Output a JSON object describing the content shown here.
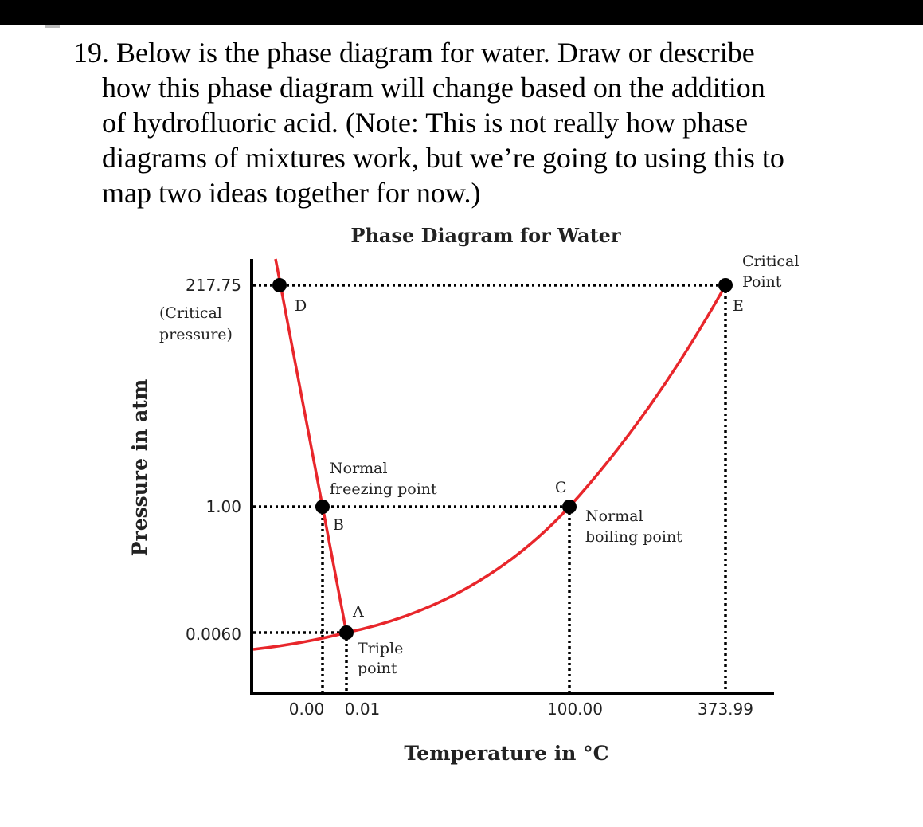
{
  "question": {
    "lines": [
      "19. Below is the phase diagram for water. Draw or describe",
      "how this phase diagram will change based on the addition",
      "of hydrofluoric acid. (Note: This is not really how phase",
      "diagrams of mixtures work, but we’re going to using this to",
      "map two ideas together for now.)"
    ]
  },
  "diagram": {
    "title": "Phase Diagram for Water",
    "x_label": "Temperature in °C",
    "y_label": "Pressure in atm",
    "x_ticks": [
      "0.00",
      "0.01",
      "100.00",
      "373.99"
    ],
    "y_ticks": [
      "217.75",
      "1.00",
      "0.0060"
    ],
    "y_tick_note": [
      "(Critical",
      "pressure)"
    ],
    "points": {
      "A": {
        "letter": "A",
        "label": [
          "Triple",
          "point"
        ],
        "temperature": 0.01,
        "pressure": 0.006
      },
      "B": {
        "letter": "B",
        "label": [
          "Normal",
          "freezing point"
        ],
        "temperature": 0.0,
        "pressure": 1.0
      },
      "C": {
        "letter": "C",
        "label": [
          "Normal",
          "boiling point"
        ],
        "temperature": 100.0,
        "pressure": 1.0
      },
      "D": {
        "letter": "D",
        "temperature": 0.0,
        "pressure": 217.75
      },
      "E": {
        "letter": "E",
        "label": [
          "Critical",
          "Point"
        ],
        "temperature": 373.99,
        "pressure": 217.75
      }
    },
    "colors": {
      "curve": "#e8262b",
      "axes": "#000000",
      "points": "#000000"
    }
  }
}
